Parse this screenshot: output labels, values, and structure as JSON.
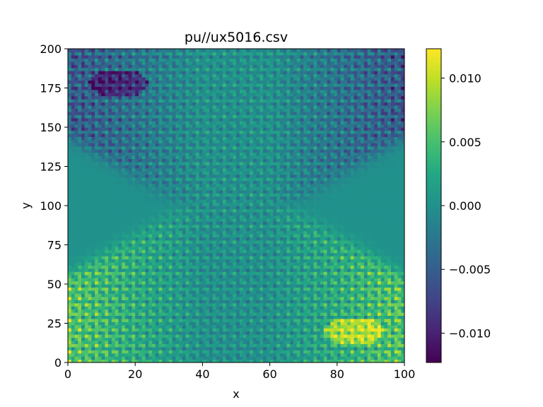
{
  "chart_data": {
    "type": "heatmap",
    "title": "pu//ux5016.csv",
    "xlabel": "x",
    "ylabel": "y",
    "xlim": [
      0,
      100
    ],
    "ylim": [
      0,
      200
    ],
    "xticks": [
      0,
      20,
      40,
      60,
      80,
      100
    ],
    "yticks": [
      0,
      25,
      50,
      75,
      100,
      125,
      150,
      175,
      200
    ],
    "colormap": "viridis",
    "colorbar": {
      "vmin": -0.0123,
      "vmax": 0.0123,
      "ticks": [
        0.01,
        0.005,
        0.0,
        -0.005,
        -0.01
      ],
      "tick_labels": [
        "0.010",
        "0.005",
        "0.000",
        "−0.005",
        "−0.010"
      ]
    },
    "grid": false,
    "description_of_field": [
      {
        "region": "central diamond (x 35-70, y 60-145)",
        "value": 0.0
      },
      {
        "region": "lower-left wedge (x 0-35, y 0-100)",
        "value": 0.006
      },
      {
        "region": "lower-right wedge (x 70-100, y 0-100)",
        "value": 0.006
      },
      {
        "region": "upper-left wedge (x 0-35, y 100-200)",
        "value": -0.006
      },
      {
        "region": "upper-right wedge (x 70-100, y 100-200)",
        "value": -0.006
      },
      {
        "region": "peak near x 85, y 20",
        "value": 0.0123
      },
      {
        "region": "trough near x 15, y 178",
        "value": -0.0123
      }
    ]
  }
}
